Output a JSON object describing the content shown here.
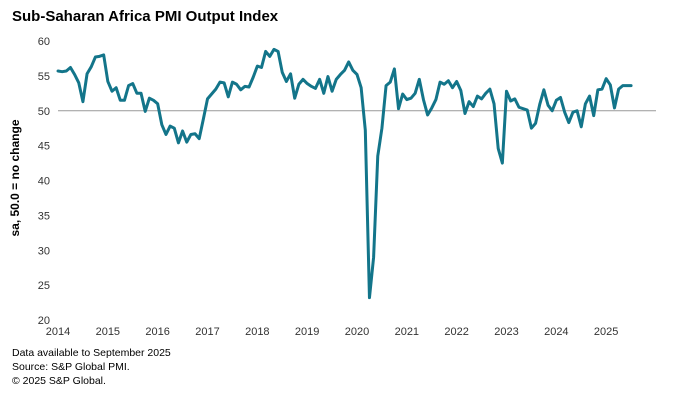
{
  "chart_data": {
    "type": "line",
    "title": "Sub-Saharan Africa PMI Output Index",
    "ylabel": "sa, 50.0 = no change",
    "xlabel": "",
    "ylim": [
      20,
      60
    ],
    "yticks": [
      20,
      25,
      30,
      35,
      40,
      45,
      50,
      55,
      60
    ],
    "xticks": [
      "2014",
      "2015",
      "2016",
      "2017",
      "2018",
      "2019",
      "2020",
      "2021",
      "2022",
      "2023",
      "2024",
      "2025"
    ],
    "reference_line": 50,
    "start": "2014-01",
    "end": "2025-09",
    "series": [
      {
        "name": "Sub-Saharan Africa PMI Output Index",
        "color": "#13758a",
        "values": [
          55.7,
          55.6,
          55.7,
          56.2,
          55.2,
          54.0,
          51.3,
          55.3,
          56.3,
          57.7,
          57.8,
          58.0,
          54.2,
          52.8,
          53.3,
          51.5,
          51.5,
          53.6,
          53.9,
          52.5,
          52.5,
          49.9,
          51.8,
          51.5,
          51.0,
          48.0,
          46.6,
          47.8,
          47.5,
          45.4,
          47.1,
          45.5,
          46.6,
          46.7,
          46.0,
          48.8,
          51.7,
          52.4,
          53.1,
          54.1,
          54.0,
          52.0,
          54.1,
          53.8,
          53.0,
          53.5,
          53.4,
          54.8,
          56.4,
          56.2,
          58.5,
          57.8,
          58.8,
          58.5,
          55.5,
          54.2,
          55.3,
          51.8,
          53.8,
          54.5,
          53.9,
          53.5,
          53.2,
          54.5,
          52.5,
          54.9,
          52.8,
          54.5,
          55.2,
          55.8,
          57.0,
          55.8,
          55.2,
          53.3,
          47.2,
          23.2,
          29.0,
          43.5,
          47.5,
          53.6,
          54.1,
          56.0,
          50.3,
          52.4,
          51.6,
          51.8,
          52.5,
          54.5,
          51.6,
          49.4,
          50.4,
          51.6,
          54.1,
          53.8,
          54.3,
          53.3,
          54.2,
          52.9,
          49.6,
          51.3,
          50.6,
          52.1,
          51.7,
          52.5,
          53.1,
          51.0,
          44.6,
          42.5,
          52.8,
          51.4,
          51.7,
          50.5,
          50.3,
          50.1,
          47.5,
          48.2,
          50.9,
          53.0,
          50.8,
          50.0,
          51.5,
          51.9,
          49.8,
          48.3,
          49.8,
          50.0,
          47.7,
          51.0,
          52.1,
          49.3,
          53.0,
          53.1,
          54.6,
          53.7,
          50.4,
          53.1,
          53.6,
          53.6,
          53.6
        ]
      }
    ]
  },
  "footnotes": {
    "line1": "Data available to September 2025",
    "line2": "Source: S&P Global PMI.",
    "line3": "© 2025 S&P Global."
  }
}
